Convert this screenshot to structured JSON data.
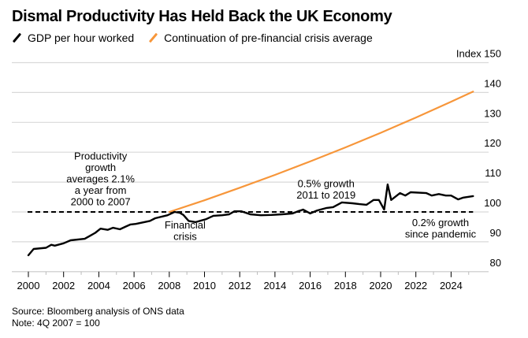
{
  "header": {
    "title": "Dismal Productivity Has Held Back the UK Economy"
  },
  "legend": [
    {
      "label": "GDP per hour worked",
      "color": "#000000"
    },
    {
      "label": "Continuation of pre-financial crisis average",
      "color": "#f7963a"
    }
  ],
  "footer": {
    "source": "Source: Bloomberg analysis of ONS data",
    "note": "Note: 4Q 2007 = 100"
  },
  "chart_data": {
    "type": "line",
    "title": "Dismal Productivity Has Held Back the UK Economy",
    "xlabel": "",
    "ylabel": "Index",
    "y_unit_label": "Index 150",
    "xlim": [
      2000,
      2025.5
    ],
    "ylim": [
      80,
      150
    ],
    "yticks": [
      80,
      90,
      100,
      110,
      120,
      130,
      140,
      150
    ],
    "ytick_labels": [
      "80",
      "90",
      "100",
      "110",
      "120",
      "130",
      "140",
      "Index 150"
    ],
    "xticks": [
      2000,
      2002,
      2004,
      2006,
      2008,
      2010,
      2012,
      2014,
      2016,
      2018,
      2020,
      2022,
      2024
    ],
    "xtick_labels": [
      "2000",
      "2002",
      "2004",
      "2006",
      "2008",
      "2010",
      "2012",
      "2014",
      "2016",
      "2018",
      "2020",
      "2022",
      "2024"
    ],
    "grid": true,
    "legend_position": "top-left",
    "reference_line": {
      "value": 100,
      "style": "dashed",
      "x_range": [
        2000,
        2025.25
      ]
    },
    "series": [
      {
        "name": "GDP per hour worked",
        "color": "#000000",
        "x": [
          2000.0,
          2000.3,
          2001.0,
          2001.3,
          2001.5,
          2002.0,
          2002.4,
          2003.2,
          2003.5,
          2003.8,
          2004.1,
          2004.5,
          2004.8,
          2005.2,
          2005.5,
          2005.8,
          2006.1,
          2006.9,
          2007.2,
          2007.9,
          2008.3,
          2008.6,
          2008.8,
          2009.1,
          2009.5,
          2010.1,
          2010.5,
          2011.0,
          2011.4,
          2011.7,
          2012.1,
          2012.6,
          2013.2,
          2013.8,
          2014.4,
          2015.0,
          2015.3,
          2015.6,
          2016.0,
          2016.4,
          2016.9,
          2017.3,
          2017.8,
          2018.4,
          2018.8,
          2019.2,
          2019.6,
          2019.9,
          2020.2,
          2020.4,
          2020.6,
          2021.1,
          2021.4,
          2021.7,
          2022.6,
          2022.9,
          2023.3,
          2023.7,
          2024.0,
          2024.4,
          2024.7,
          2025.25
        ],
        "values": [
          85.5,
          87.6,
          88.0,
          89.0,
          88.7,
          89.5,
          90.5,
          91.0,
          92.0,
          93.0,
          94.4,
          94.0,
          94.7,
          94.2,
          95.0,
          95.8,
          96.0,
          97.0,
          97.9,
          98.9,
          100.0,
          99.7,
          99.0,
          97.0,
          96.6,
          97.6,
          98.7,
          98.9,
          99.2,
          100.2,
          100.2,
          99.2,
          98.9,
          99.0,
          99.2,
          99.5,
          100.2,
          100.8,
          99.5,
          100.5,
          101.3,
          101.6,
          103.2,
          102.9,
          102.6,
          102.4,
          104.0,
          104.0,
          100.8,
          109.2,
          104.0,
          106.3,
          105.5,
          106.6,
          106.3,
          105.5,
          106.0,
          105.5,
          105.5,
          104.2,
          104.8,
          105.3
        ]
      },
      {
        "name": "Continuation of pre-financial crisis average",
        "color": "#f7963a",
        "x": [
          2008.0,
          2010.0,
          2012.0,
          2014.0,
          2016.0,
          2018.0,
          2020.0,
          2022.0,
          2024.0,
          2025.25
        ],
        "values": [
          100.0,
          103.9,
          108.1,
          112.4,
          116.9,
          121.6,
          126.5,
          131.6,
          136.9,
          140.3
        ]
      }
    ],
    "annotations": [
      {
        "text": [
          "Productivity",
          "growth",
          "averages 2.1%",
          "a year from",
          "2000 to 2007"
        ],
        "anchor": {
          "x": 2004.1,
          "y": 117.5
        }
      },
      {
        "text": [
          "Financial",
          "crisis"
        ],
        "anchor": {
          "x": 2008.9,
          "y": 94.5
        }
      },
      {
        "text": [
          "0.5% growth",
          "2011 to 2019"
        ],
        "anchor": {
          "x": 2016.9,
          "y": 108.3
        }
      },
      {
        "text": [
          "0.2% growth",
          "since pandemic"
        ],
        "anchor": {
          "x": 2023.4,
          "y": 95.3
        }
      }
    ]
  }
}
